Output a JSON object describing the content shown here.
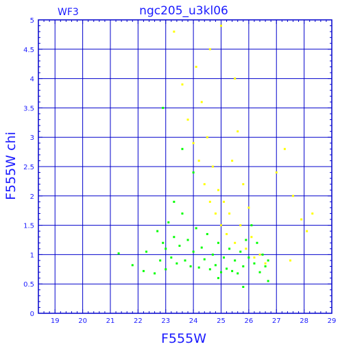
{
  "chart_data": {
    "type": "scatter",
    "title": "ngc205_u3kl06",
    "subtitle": "WF3",
    "xlabel": "F555W",
    "ylabel": "F555W  chi",
    "xlim": [
      18.4,
      29
    ],
    "ylim": [
      0,
      5
    ],
    "x_ticks": [
      "19",
      "20",
      "21",
      "22",
      "23",
      "24",
      "25",
      "26",
      "27",
      "28",
      "29"
    ],
    "y_ticks": [
      "0",
      "0.5",
      "1",
      "1.5",
      "2",
      "2.5",
      "3",
      "3.5",
      "4",
      "4.5",
      "5"
    ],
    "grid": true,
    "series": [
      {
        "color": "#00ff00",
        "points": [
          [
            21.3,
            1.02
          ],
          [
            21.8,
            0.82
          ],
          [
            22.2,
            0.72
          ],
          [
            22.3,
            1.05
          ],
          [
            22.6,
            0.68
          ],
          [
            22.7,
            1.4
          ],
          [
            22.8,
            0.9
          ],
          [
            22.9,
            1.2
          ],
          [
            23.0,
            0.75
          ],
          [
            23.0,
            1.1
          ],
          [
            23.1,
            1.55
          ],
          [
            23.2,
            0.95
          ],
          [
            23.3,
            1.3
          ],
          [
            23.4,
            0.85
          ],
          [
            23.5,
            1.15
          ],
          [
            23.6,
            1.7
          ],
          [
            23.7,
            0.9
          ],
          [
            23.8,
            1.25
          ],
          [
            23.9,
            0.8
          ],
          [
            24.0,
            1.05
          ],
          [
            24.1,
            1.45
          ],
          [
            24.2,
            0.78
          ],
          [
            24.3,
            1.12
          ],
          [
            24.4,
            0.92
          ],
          [
            24.5,
            1.35
          ],
          [
            24.6,
            0.75
          ],
          [
            24.7,
            1.0
          ],
          [
            24.8,
            0.82
          ],
          [
            24.9,
            1.2
          ],
          [
            25.0,
            0.7
          ],
          [
            25.1,
            0.95
          ],
          [
            25.2,
            0.76
          ],
          [
            25.3,
            1.1
          ],
          [
            25.4,
            0.72
          ],
          [
            25.5,
            0.9
          ],
          [
            25.6,
            0.68
          ],
          [
            25.7,
            1.05
          ],
          [
            25.8,
            0.8
          ],
          [
            25.9,
            1.25
          ],
          [
            26.0,
            0.95
          ],
          [
            26.1,
            1.5
          ],
          [
            26.2,
            0.85
          ],
          [
            26.3,
            1.2
          ],
          [
            26.4,
            0.7
          ],
          [
            26.5,
            1.0
          ],
          [
            26.6,
            0.8
          ],
          [
            26.7,
            0.9
          ],
          [
            22.9,
            3.5
          ],
          [
            23.6,
            2.8
          ],
          [
            24.0,
            2.4
          ],
          [
            23.3,
            1.9
          ],
          [
            26.7,
            0.55
          ],
          [
            25.8,
            0.45
          ],
          [
            24.9,
            0.6
          ]
        ]
      },
      {
        "color": "#ffff00",
        "points": [
          [
            23.3,
            4.8
          ],
          [
            23.6,
            3.9
          ],
          [
            23.8,
            3.3
          ],
          [
            24.0,
            2.9
          ],
          [
            24.1,
            4.2
          ],
          [
            24.2,
            2.6
          ],
          [
            24.3,
            3.6
          ],
          [
            24.4,
            2.2
          ],
          [
            24.5,
            3.0
          ],
          [
            24.6,
            1.9
          ],
          [
            24.7,
            2.5
          ],
          [
            24.8,
            1.7
          ],
          [
            24.9,
            2.1
          ],
          [
            25.0,
            1.5
          ],
          [
            25.1,
            1.9
          ],
          [
            25.2,
            1.35
          ],
          [
            25.3,
            1.7
          ],
          [
            25.4,
            2.6
          ],
          [
            25.5,
            1.2
          ],
          [
            25.6,
            3.1
          ],
          [
            25.7,
            1.5
          ],
          [
            25.8,
            2.2
          ],
          [
            25.9,
            1.1
          ],
          [
            26.0,
            1.8
          ],
          [
            26.1,
            1.3
          ],
          [
            26.2,
            0.95
          ],
          [
            26.4,
            1.0
          ],
          [
            26.6,
            0.85
          ],
          [
            27.0,
            2.4
          ],
          [
            27.3,
            2.8
          ],
          [
            27.6,
            2.0
          ],
          [
            27.9,
            1.6
          ],
          [
            28.1,
            1.4
          ],
          [
            28.3,
            1.7
          ],
          [
            27.5,
            0.9
          ],
          [
            25.0,
            4.9
          ],
          [
            24.6,
            4.5
          ],
          [
            25.5,
            4.0
          ]
        ]
      }
    ]
  }
}
